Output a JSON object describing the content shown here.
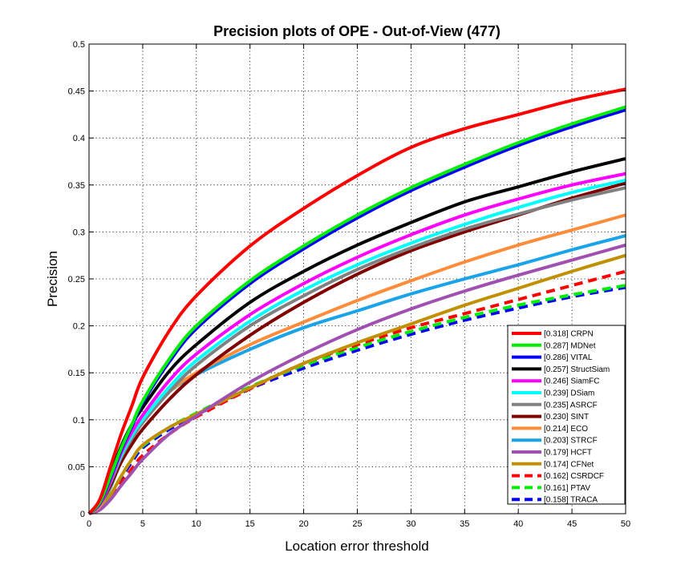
{
  "chart_data": {
    "type": "line",
    "title": "Precision plots of OPE - Out-of-View (477)",
    "xlabel": "Location error threshold",
    "ylabel": "Precision",
    "xlim": [
      0,
      50
    ],
    "ylim": [
      0,
      0.5
    ],
    "xticks": [
      0,
      5,
      10,
      15,
      20,
      25,
      30,
      35,
      40,
      45,
      50
    ],
    "yticks": [
      0,
      0.05,
      0.1,
      0.15,
      0.2,
      0.25,
      0.3,
      0.35,
      0.4,
      0.45,
      0.5
    ],
    "ytick_labels": [
      "0",
      "0.05",
      "0.1",
      "0.15",
      "0.2",
      "0.25",
      "0.3",
      "0.35",
      "0.4",
      "0.45",
      "0.5"
    ],
    "grid": true,
    "legend_position": "bottom-right",
    "x": [
      0,
      1,
      2,
      3,
      4,
      5,
      7.5,
      10,
      15,
      20,
      25,
      30,
      35,
      40,
      45,
      50
    ],
    "series": [
      {
        "name": "CRPN",
        "legend": "[0.318] CRPN",
        "color": "#ff0000",
        "dashed": false,
        "values": [
          0,
          0.015,
          0.05,
          0.085,
          0.115,
          0.145,
          0.195,
          0.232,
          0.285,
          0.325,
          0.36,
          0.39,
          0.41,
          0.425,
          0.44,
          0.452
        ]
      },
      {
        "name": "MDNet",
        "legend": "[0.287] MDNet",
        "color": "#00ee00",
        "dashed": false,
        "values": [
          0,
          0.012,
          0.04,
          0.07,
          0.095,
          0.12,
          0.165,
          0.2,
          0.248,
          0.285,
          0.318,
          0.347,
          0.372,
          0.395,
          0.415,
          0.433
        ]
      },
      {
        "name": "VITAL",
        "legend": "[0.286] VITAL",
        "color": "#0000ff",
        "dashed": false,
        "values": [
          0,
          0.011,
          0.038,
          0.068,
          0.093,
          0.118,
          0.162,
          0.197,
          0.245,
          0.282,
          0.315,
          0.344,
          0.369,
          0.392,
          0.412,
          0.43
        ]
      },
      {
        "name": "StructSiam",
        "legend": "[0.257] StructSiam",
        "color": "#000000",
        "dashed": false,
        "values": [
          0,
          0.012,
          0.042,
          0.072,
          0.095,
          0.113,
          0.152,
          0.18,
          0.225,
          0.258,
          0.286,
          0.31,
          0.332,
          0.348,
          0.364,
          0.378
        ]
      },
      {
        "name": "SiamFC",
        "legend": "[0.246] SiamFC",
        "color": "#ff00ff",
        "dashed": false,
        "values": [
          0,
          0.01,
          0.035,
          0.065,
          0.087,
          0.105,
          0.142,
          0.17,
          0.212,
          0.245,
          0.273,
          0.297,
          0.318,
          0.335,
          0.35,
          0.362
        ]
      },
      {
        "name": "DSiam",
        "legend": "[0.239] DSiam",
        "color": "#00ffff",
        "dashed": false,
        "values": [
          0,
          0.01,
          0.035,
          0.062,
          0.083,
          0.1,
          0.135,
          0.163,
          0.205,
          0.238,
          0.265,
          0.288,
          0.308,
          0.326,
          0.342,
          0.355
        ]
      },
      {
        "name": "ASRCF",
        "legend": "[0.235] ASRCF",
        "color": "#808080",
        "dashed": false,
        "values": [
          0,
          0.01,
          0.033,
          0.06,
          0.08,
          0.097,
          0.13,
          0.158,
          0.2,
          0.232,
          0.26,
          0.283,
          0.303,
          0.319,
          0.334,
          0.347
        ]
      },
      {
        "name": "SINT",
        "legend": "[0.230] SINT",
        "color": "#800000",
        "dashed": false,
        "values": [
          0,
          0.01,
          0.03,
          0.055,
          0.074,
          0.09,
          0.122,
          0.148,
          0.19,
          0.225,
          0.255,
          0.28,
          0.3,
          0.318,
          0.336,
          0.352
        ]
      },
      {
        "name": "ECO",
        "legend": "[0.214] ECO",
        "color": "#ff8c3a",
        "dashed": false,
        "values": [
          0,
          0.008,
          0.03,
          0.06,
          0.082,
          0.1,
          0.13,
          0.15,
          0.18,
          0.204,
          0.227,
          0.248,
          0.268,
          0.286,
          0.302,
          0.318
        ]
      },
      {
        "name": "STRCF",
        "legend": "[0.203] STRCF",
        "color": "#1aa3e8",
        "dashed": false,
        "values": [
          0,
          0.008,
          0.028,
          0.058,
          0.08,
          0.1,
          0.13,
          0.148,
          0.175,
          0.198,
          0.216,
          0.234,
          0.25,
          0.265,
          0.281,
          0.296
        ]
      },
      {
        "name": "HCFT",
        "legend": "[0.179] HCFT",
        "color": "#a050b0",
        "dashed": false,
        "values": [
          0,
          0.004,
          0.015,
          0.03,
          0.044,
          0.058,
          0.085,
          0.104,
          0.14,
          0.17,
          0.196,
          0.218,
          0.237,
          0.254,
          0.27,
          0.286
        ]
      },
      {
        "name": "CFNet",
        "legend": "[0.174] CFNet",
        "color": "#c09000",
        "dashed": false,
        "values": [
          0,
          0.005,
          0.02,
          0.04,
          0.058,
          0.073,
          0.092,
          0.106,
          0.134,
          0.16,
          0.182,
          0.202,
          0.222,
          0.24,
          0.258,
          0.275
        ]
      },
      {
        "name": "CSRDCF",
        "legend": "[0.162] CSRDCF",
        "color": "#ff0000",
        "dashed": true,
        "values": [
          0,
          0.005,
          0.018,
          0.033,
          0.048,
          0.062,
          0.085,
          0.103,
          0.133,
          0.16,
          0.18,
          0.198,
          0.213,
          0.228,
          0.243,
          0.258
        ]
      },
      {
        "name": "PTAV",
        "legend": "[0.161] PTAV",
        "color": "#00ee00",
        "dashed": true,
        "values": [
          0,
          0.005,
          0.02,
          0.04,
          0.058,
          0.072,
          0.092,
          0.107,
          0.135,
          0.158,
          0.177,
          0.194,
          0.209,
          0.222,
          0.233,
          0.243
        ]
      },
      {
        "name": "TRACA",
        "legend": "[0.158] TRACA",
        "color": "#0000ff",
        "dashed": true,
        "values": [
          0,
          0.005,
          0.02,
          0.038,
          0.055,
          0.07,
          0.09,
          0.105,
          0.133,
          0.155,
          0.174,
          0.191,
          0.206,
          0.219,
          0.231,
          0.241
        ]
      }
    ]
  }
}
